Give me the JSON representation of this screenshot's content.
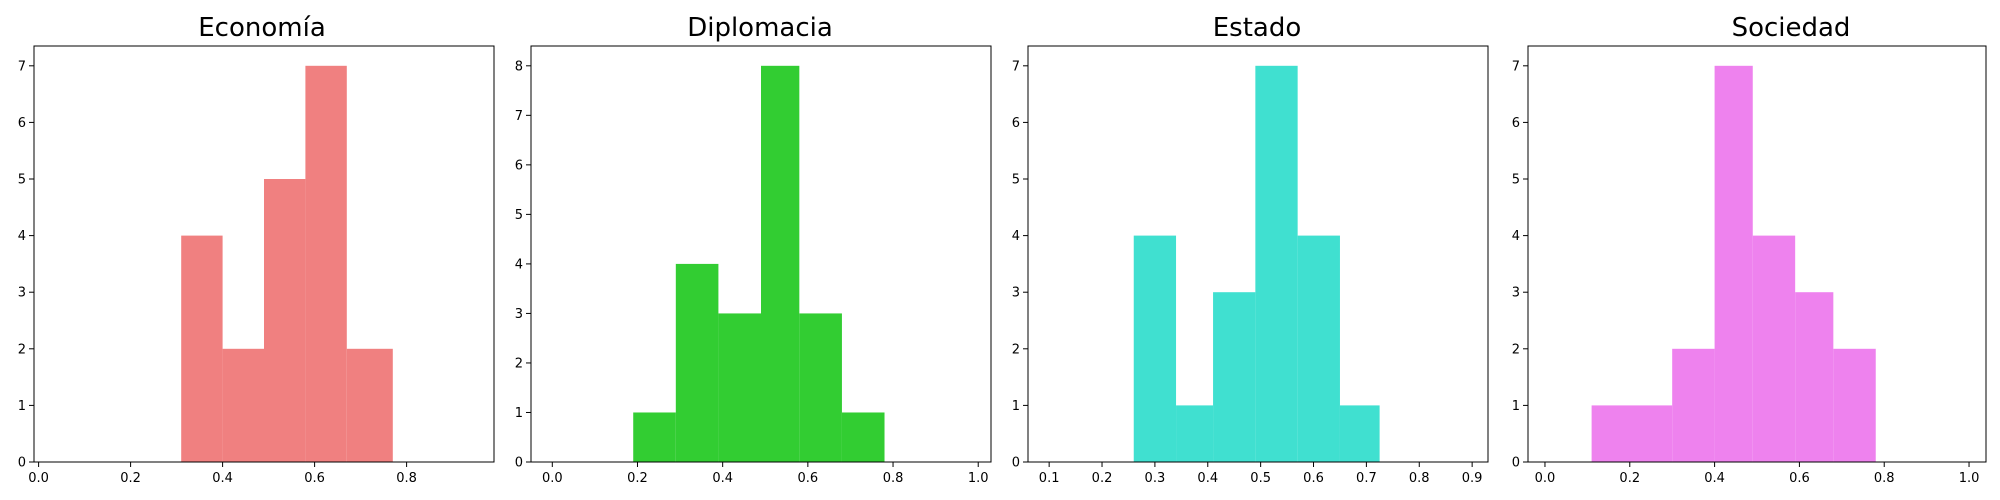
{
  "chart_data": [
    {
      "type": "bar",
      "title": "Economía",
      "color": "#f08080",
      "bins": [
        [
          0.31,
          0.4
        ],
        [
          0.4,
          0.49
        ],
        [
          0.49,
          0.58
        ],
        [
          0.58,
          0.67
        ],
        [
          0.67,
          0.77
        ]
      ],
      "values": [
        4,
        2,
        5,
        7,
        2
      ],
      "xlim": [
        -0.01,
        0.99
      ],
      "ylim": [
        0,
        7.35
      ],
      "xticks": [
        0.0,
        0.2,
        0.4,
        0.6,
        0.8
      ],
      "xtick_labels": [
        "0.0",
        "0.2",
        "0.4",
        "0.6",
        "0.8"
      ],
      "yticks": [
        0,
        1,
        2,
        3,
        4,
        5,
        6,
        7
      ],
      "ytick_labels": [
        "0",
        "1",
        "2",
        "3",
        "4",
        "5",
        "6",
        "7"
      ],
      "xlabel": "",
      "ylabel": "",
      "grid": false
    },
    {
      "type": "bar",
      "title": "Diplomacia",
      "color": "#32cd32",
      "bins": [
        [
          0.19,
          0.29
        ],
        [
          0.29,
          0.39
        ],
        [
          0.39,
          0.49
        ],
        [
          0.49,
          0.58
        ],
        [
          0.58,
          0.68
        ],
        [
          0.68,
          0.78
        ]
      ],
      "values": [
        1,
        4,
        3,
        8,
        3,
        1
      ],
      "xlim": [
        -0.05,
        1.03
      ],
      "ylim": [
        0,
        8.4
      ],
      "xticks": [
        0.0,
        0.2,
        0.4,
        0.6,
        0.8,
        1.0
      ],
      "xtick_labels": [
        "0.0",
        "0.2",
        "0.4",
        "0.6",
        "0.8",
        "1.0"
      ],
      "yticks": [
        0,
        1,
        2,
        3,
        4,
        5,
        6,
        7,
        8
      ],
      "ytick_labels": [
        "0",
        "1",
        "2",
        "3",
        "4",
        "5",
        "6",
        "7",
        "8"
      ],
      "xlabel": "",
      "ylabel": "",
      "grid": false
    },
    {
      "type": "bar",
      "title": "Estado",
      "color": "#40e0d0",
      "bins": [
        [
          0.26,
          0.34
        ],
        [
          0.34,
          0.41
        ],
        [
          0.41,
          0.49
        ],
        [
          0.49,
          0.57
        ],
        [
          0.57,
          0.65
        ],
        [
          0.65,
          0.725
        ]
      ],
      "values": [
        4,
        1,
        3,
        7,
        4,
        1
      ],
      "xlim": [
        0.06,
        0.93
      ],
      "ylim": [
        0,
        7.35
      ],
      "xticks": [
        0.1,
        0.2,
        0.3,
        0.4,
        0.5,
        0.6,
        0.7,
        0.8,
        0.9
      ],
      "xtick_labels": [
        "0.1",
        "0.2",
        "0.3",
        "0.4",
        "0.5",
        "0.6",
        "0.7",
        "0.8",
        "0.9"
      ],
      "yticks": [
        0,
        1,
        2,
        3,
        4,
        5,
        6,
        7
      ],
      "ytick_labels": [
        "0",
        "1",
        "2",
        "3",
        "4",
        "5",
        "6",
        "7"
      ],
      "xlabel": "",
      "ylabel": "",
      "grid": false
    },
    {
      "type": "bar",
      "title": "Sociedad",
      "color": "#ee82ee",
      "bins": [
        [
          0.11,
          0.3
        ],
        [
          0.3,
          0.4
        ],
        [
          0.4,
          0.49
        ],
        [
          0.49,
          0.59
        ],
        [
          0.59,
          0.68
        ],
        [
          0.68,
          0.78
        ]
      ],
      "values": [
        1,
        2,
        7,
        4,
        3,
        2
      ],
      "xlim": [
        -0.04,
        1.04
      ],
      "ylim": [
        0,
        7.35
      ],
      "xticks": [
        0.0,
        0.2,
        0.4,
        0.6,
        0.8,
        1.0
      ],
      "xtick_labels": [
        "0.0",
        "0.2",
        "0.4",
        "0.6",
        "0.8",
        "1.0"
      ],
      "yticks": [
        0,
        1,
        2,
        3,
        4,
        5,
        6,
        7
      ],
      "ytick_labels": [
        "0",
        "1",
        "2",
        "3",
        "4",
        "5",
        "6",
        "7"
      ],
      "xlabel": "",
      "ylabel": "",
      "grid": false
    }
  ]
}
